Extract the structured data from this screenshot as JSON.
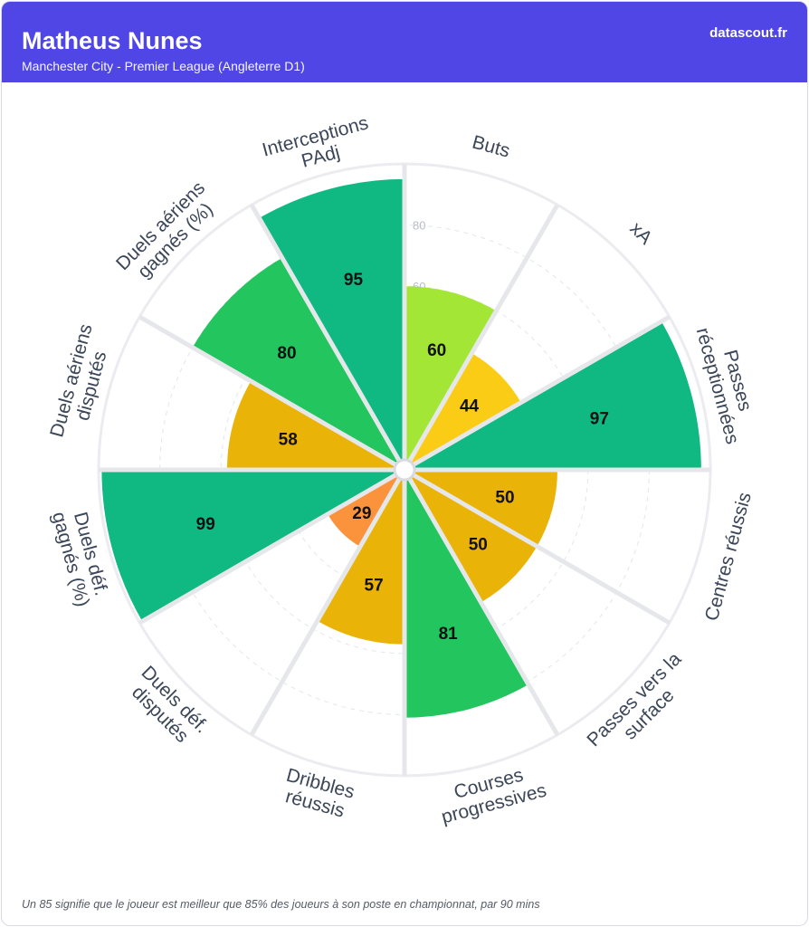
{
  "header": {
    "title": "Matheus Nunes",
    "subtitle": "Manchester City - Premier League (Angleterre D1)",
    "brand": "datascout.fr"
  },
  "footnote": "Un 85 signifie que le joueur est meilleur que 85% des joueurs à son poste en championnat, par 90 mins",
  "chart_data": {
    "type": "polar-bar",
    "max": 100,
    "ring_ticks": [
      20,
      40,
      60,
      80,
      100
    ],
    "ring_tick_labels": [
      "60",
      "80"
    ],
    "categories": [
      {
        "label": [
          "Buts"
        ],
        "value": 60,
        "color": "#a3e635"
      },
      {
        "label": [
          "xA"
        ],
        "value": 44,
        "color": "#facc15"
      },
      {
        "label": [
          "Passes",
          "réceptionnées"
        ],
        "value": 97,
        "color": "#10b981"
      },
      {
        "label": [
          "Centres réussis"
        ],
        "value": 50,
        "color": "#eab308"
      },
      {
        "label": [
          "Passes vers la",
          "surface"
        ],
        "value": 50,
        "color": "#eab308"
      },
      {
        "label": [
          "Courses",
          "progressives"
        ],
        "value": 81,
        "color": "#22c55e"
      },
      {
        "label": [
          "Dribbles",
          "réussis"
        ],
        "value": 57,
        "color": "#eab308"
      },
      {
        "label": [
          "Duels déf.",
          "disputés"
        ],
        "value": 29,
        "color": "#fb923c"
      },
      {
        "label": [
          "Duels déf.",
          "gagnés (%)"
        ],
        "value": 99,
        "color": "#10b981"
      },
      {
        "label": [
          "Duels aériens",
          "disputés"
        ],
        "value": 58,
        "color": "#eab308"
      },
      {
        "label": [
          "Duels aériens",
          "gagnés (%)"
        ],
        "value": 80,
        "color": "#22c55e"
      },
      {
        "label": [
          "Interceptions",
          "PAdj"
        ],
        "value": 95,
        "color": "#10b981"
      }
    ]
  }
}
